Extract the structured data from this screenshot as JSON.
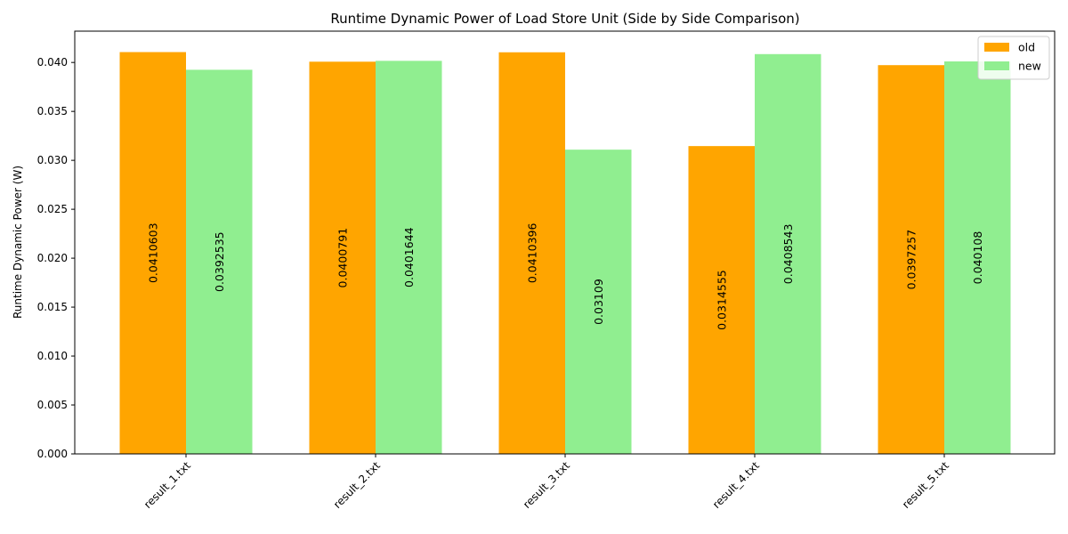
{
  "chart_data": {
    "type": "bar",
    "title": "Runtime Dynamic Power of Load Store Unit (Side by Side Comparison)",
    "xlabel": "",
    "ylabel": "Runtime Dynamic Power (W)",
    "categories": [
      "result_1.txt",
      "result_2.txt",
      "result_3.txt",
      "result_4.txt",
      "result_5.txt"
    ],
    "series": [
      {
        "name": "old",
        "color": "#ffa500",
        "values": [
          0.0410603,
          0.0400791,
          0.0410396,
          0.0314555,
          0.0397257
        ],
        "labels": [
          "0.0410603",
          "0.0400791",
          "0.0410396",
          "0.0314555",
          "0.0397257"
        ]
      },
      {
        "name": "new",
        "color": "#90ee90",
        "values": [
          0.0392535,
          0.0401644,
          0.03109,
          0.0408543,
          0.040108
        ],
        "labels": [
          "0.0392535",
          "0.0401644",
          "0.03109",
          "0.0408543",
          "0.040108"
        ]
      }
    ],
    "ylim": [
      0,
      0.0432
    ],
    "yticks": [
      "0.000",
      "0.005",
      "0.010",
      "0.015",
      "0.020",
      "0.025",
      "0.030",
      "0.035",
      "0.040"
    ],
    "ytick_values": [
      0,
      0.005,
      0.01,
      0.015,
      0.02,
      0.025,
      0.03,
      0.035,
      0.04
    ],
    "legend_position": "top-right",
    "grid": false
  }
}
